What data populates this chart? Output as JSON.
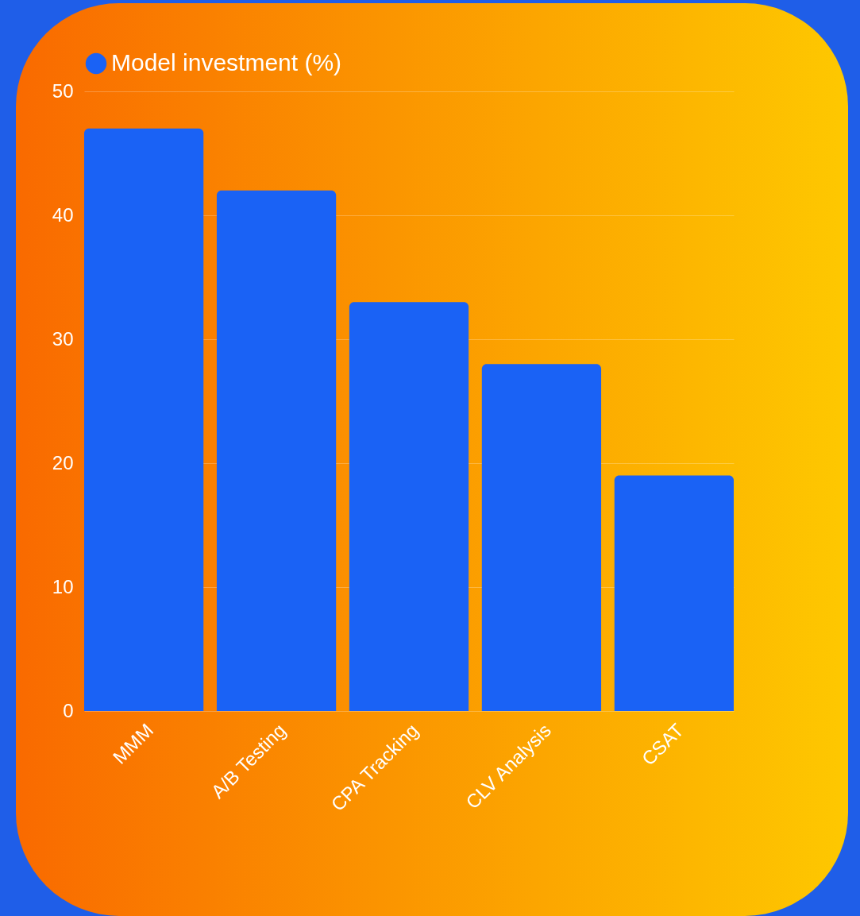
{
  "chart_data": {
    "type": "bar",
    "categories": [
      "MMM",
      "A/B Testing",
      "CPA Tracking",
      "CLV Analysis",
      "CSAT"
    ],
    "series": [
      {
        "name": "Model investment (%)",
        "color": "#1a62f5",
        "values": [
          47,
          42,
          33,
          28,
          19
        ]
      }
    ],
    "ylim": [
      0,
      50
    ],
    "yticks": [
      0,
      10,
      20,
      30,
      40,
      50
    ],
    "grid": "y",
    "legend": "top"
  }
}
